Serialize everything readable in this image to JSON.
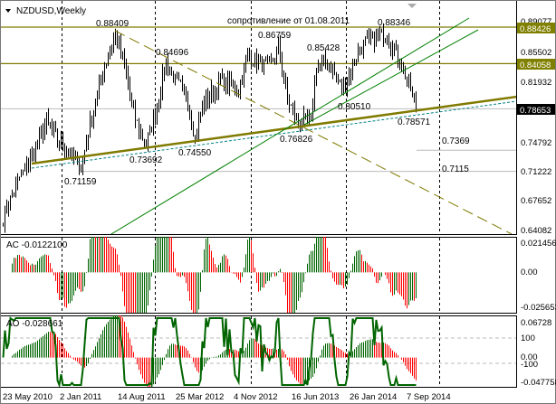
{
  "chart_data": {
    "type": "bar",
    "title": "NZDUSD,Weekly",
    "symbol": "NZDUSD",
    "timeframe": "Weekly",
    "price_axis": {
      "ticks": [
        "0.89077",
        "0.85502",
        "0.81932",
        "0.78653",
        "0.74792",
        "0.71222",
        "0.67652",
        "0.64082"
      ],
      "range": [
        0.64082,
        0.89077
      ]
    },
    "date_axis": {
      "ticks": [
        "23 May 2010",
        "2 Jan 2011",
        "14 Aug 2011",
        "25 Mar 2012",
        "4 Nov 2012",
        "16 Jun 2013",
        "26 Jan 2014",
        "7 Sep 2014"
      ]
    },
    "price_labels": {
      "level1": "0.88426",
      "level2": "0.84058",
      "current": "0.78653"
    },
    "annotations": {
      "a1": "0.88409",
      "a2": "0.84696",
      "a3": "0.86759",
      "note": "сопротивление от 01.08.2011",
      "a4": "0.85428",
      "a5": "0.88346",
      "a6": "0.80510",
      "a7": "0.78571",
      "a8": "0.76826",
      "a9": "0.73692",
      "a10": "0.74550",
      "a11": "0.71159",
      "a12": "0.7369",
      "a13": "0.7115"
    },
    "levels": [
      0.88426,
      0.84058,
      0.78653,
      0.7369,
      0.7115
    ],
    "close_keypoints": [
      [
        0,
        0.655
      ],
      [
        8,
        0.7
      ],
      [
        16,
        0.73
      ],
      [
        24,
        0.77
      ],
      [
        30,
        0.75
      ],
      [
        35,
        0.74
      ],
      [
        43,
        0.715
      ],
      [
        48,
        0.77
      ],
      [
        55,
        0.83
      ],
      [
        62,
        0.878
      ],
      [
        67,
        0.84
      ],
      [
        72,
        0.78
      ],
      [
        79,
        0.742
      ],
      [
        85,
        0.79
      ],
      [
        90,
        0.843
      ],
      [
        95,
        0.82
      ],
      [
        102,
        0.8
      ],
      [
        106,
        0.75
      ],
      [
        110,
        0.79
      ],
      [
        120,
        0.82
      ],
      [
        130,
        0.81
      ],
      [
        135,
        0.85
      ],
      [
        147,
        0.835
      ],
      [
        152,
        0.86
      ],
      [
        157,
        0.8
      ],
      [
        162,
        0.772
      ],
      [
        170,
        0.772
      ],
      [
        173,
        0.84
      ],
      [
        180,
        0.84
      ],
      [
        187,
        0.81
      ],
      [
        192,
        0.83
      ],
      [
        197,
        0.86
      ],
      [
        205,
        0.872
      ],
      [
        212,
        0.878
      ],
      [
        215,
        0.86
      ],
      [
        220,
        0.84
      ],
      [
        225,
        0.81
      ],
      [
        228,
        0.7865
      ]
    ],
    "ac": {
      "label": "AC -0.0122100",
      "ticks": [
        "0.021456",
        "0.00",
        "-0.025653"
      ],
      "range": [
        -0.025653,
        0.021456
      ]
    },
    "ao": {
      "label": "AO -0.028661",
      "ticks": [
        "0.06728",
        "100",
        "0.00",
        "-100",
        "-0.047758"
      ],
      "range": [
        -0.047758,
        0.06728
      ]
    },
    "colors": {
      "olive": "#7f7a00",
      "green": "#008000",
      "teal": "#008080",
      "up": "#006400",
      "down": "#ff0000",
      "label_bg": "#808000"
    }
  }
}
